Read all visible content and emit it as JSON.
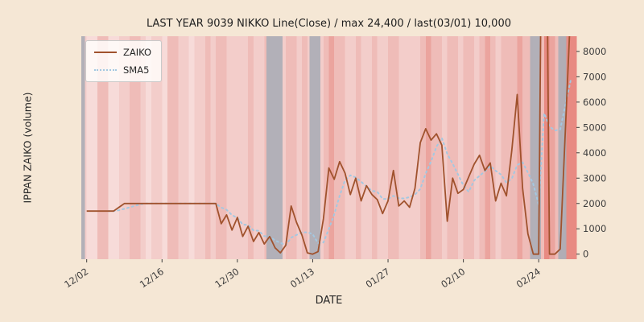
{
  "figure": {
    "title": "LAST YEAR 9039 NIKKO Line(Close) / max 24,400 / last(03/01) 10,000",
    "x_axis_label": "DATE",
    "y_axis_label": "IPPAN ZAIKO (volume)",
    "background_color": "#f5e7d5"
  },
  "legend": {
    "items": [
      {
        "label": "ZAIKO",
        "color": "#a0522d",
        "style": "solid"
      },
      {
        "label": "SMA5",
        "color": "#a4c8e1",
        "style": "dotted"
      }
    ]
  },
  "chart_data": {
    "type": "line",
    "title": "LAST YEAR 9039 NIKKO Line(Close) / max 24,400 / last(03/01) 10,000",
    "xlabel": "DATE",
    "ylabel": "IPPAN ZAIKO (volume)",
    "stats": {
      "max": 24400,
      "last_date": "03/01",
      "last_value": 10000
    },
    "x_unit": "days since 12/01",
    "xlim_days": [
      0,
      92
    ],
    "ylim": [
      -200,
      8600
    ],
    "x_tick_labels": [
      "12/02",
      "12/16",
      "12/30",
      "01/13",
      "01/27",
      "02/10",
      "02/24"
    ],
    "x_tick_days": [
      1,
      15,
      29,
      43,
      57,
      71,
      85
    ],
    "y_ticks": [
      0,
      1000,
      2000,
      3000,
      4000,
      5000,
      6000,
      7000,
      8000
    ],
    "legend_position": "upper-left",
    "grid": false,
    "series": [
      {
        "name": "ZAIKO",
        "color": "#a0522d",
        "style": "solid",
        "points": [
          [
            1,
            1700
          ],
          [
            2,
            1700
          ],
          [
            3,
            1700
          ],
          [
            4,
            1700
          ],
          [
            5,
            1700
          ],
          [
            6,
            1700
          ],
          [
            7,
            1850
          ],
          [
            8,
            2000
          ],
          [
            9,
            2000
          ],
          [
            10,
            2000
          ],
          [
            11,
            2000
          ],
          [
            12,
            2000
          ],
          [
            13,
            2000
          ],
          [
            15,
            2000
          ],
          [
            17,
            2000
          ],
          [
            19,
            2000
          ],
          [
            21,
            2000
          ],
          [
            23,
            2000
          ],
          [
            24,
            2000
          ],
          [
            25,
            2000
          ],
          [
            26,
            1200
          ],
          [
            27,
            1550
          ],
          [
            28,
            950
          ],
          [
            29,
            1450
          ],
          [
            30,
            700
          ],
          [
            31,
            1100
          ],
          [
            32,
            500
          ],
          [
            33,
            850
          ],
          [
            34,
            400
          ],
          [
            35,
            700
          ],
          [
            36,
            250
          ],
          [
            37,
            50
          ],
          [
            38,
            350
          ],
          [
            39,
            1900
          ],
          [
            40,
            1250
          ],
          [
            41,
            750
          ],
          [
            42,
            50
          ],
          [
            43,
            0
          ],
          [
            44,
            100
          ],
          [
            45,
            1400
          ],
          [
            46,
            3400
          ],
          [
            47,
            2950
          ],
          [
            48,
            3650
          ],
          [
            49,
            3200
          ],
          [
            50,
            2350
          ],
          [
            51,
            3000
          ],
          [
            52,
            2100
          ],
          [
            53,
            2700
          ],
          [
            54,
            2350
          ],
          [
            55,
            2150
          ],
          [
            56,
            1600
          ],
          [
            57,
            2100
          ],
          [
            58,
            3300
          ],
          [
            59,
            1900
          ],
          [
            60,
            2100
          ],
          [
            61,
            1850
          ],
          [
            62,
            2600
          ],
          [
            63,
            4400
          ],
          [
            64,
            4950
          ],
          [
            65,
            4500
          ],
          [
            66,
            4750
          ],
          [
            67,
            4300
          ],
          [
            68,
            1300
          ],
          [
            69,
            3000
          ],
          [
            70,
            2400
          ],
          [
            71,
            2550
          ],
          [
            72,
            3050
          ],
          [
            73,
            3550
          ],
          [
            74,
            3900
          ],
          [
            75,
            3300
          ],
          [
            76,
            3600
          ],
          [
            77,
            2100
          ],
          [
            78,
            2800
          ],
          [
            79,
            2300
          ],
          [
            80,
            4100
          ],
          [
            81,
            6300
          ],
          [
            82,
            2600
          ],
          [
            83,
            800
          ],
          [
            84,
            0
          ],
          [
            85,
            0
          ],
          [
            86,
            24400
          ],
          [
            87,
            0
          ],
          [
            88,
            0
          ],
          [
            89,
            200
          ],
          [
            91,
            10000
          ]
        ]
      },
      {
        "name": "SMA5",
        "color": "#a4c8e1",
        "style": "dotted",
        "derived": "5-point moving average of ZAIKO"
      }
    ],
    "background": {
      "stripe_palette": [
        "#f7dbd9",
        "#f3cdca",
        "#efbcb8",
        "#eba49e",
        "#e88a82"
      ],
      "stripe_intensity_by_day": [
        1,
        0,
        0,
        2,
        2,
        0,
        0,
        1,
        1,
        2,
        2,
        1,
        0,
        1,
        1,
        0,
        2,
        2,
        1,
        1,
        0,
        1,
        1,
        2,
        1,
        2,
        2,
        1,
        1,
        1,
        1,
        2,
        1,
        1,
        2,
        1,
        1,
        1,
        2,
        2,
        1,
        2,
        1,
        1,
        1,
        2,
        3,
        2,
        2,
        1,
        1,
        2,
        1,
        1,
        2,
        1,
        1,
        2,
        2,
        1,
        1,
        1,
        1,
        2,
        3,
        2,
        2,
        1,
        2,
        2,
        1,
        2,
        2,
        1,
        2,
        3,
        2,
        1,
        2,
        2,
        2,
        3,
        2,
        2,
        1,
        2,
        4,
        3,
        2,
        3,
        4,
        4
      ],
      "gray_bands_days": [
        [
          0,
          0.7
        ],
        [
          34.4,
          37.4
        ],
        [
          42.4,
          44.4
        ],
        [
          83.4,
          85.4
        ],
        [
          88.6,
          90.1
        ]
      ],
      "gray_color": "#aeaeb6"
    }
  }
}
